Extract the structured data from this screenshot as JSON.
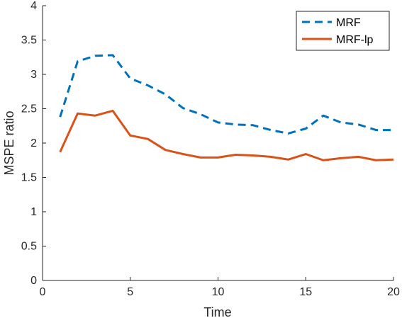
{
  "chart_data": {
    "type": "line",
    "xlabel": "Time",
    "ylabel": "MSPE ratio",
    "xlim": [
      0,
      20
    ],
    "ylim": [
      0,
      4
    ],
    "xticks": [
      "0",
      "5",
      "10",
      "15",
      "20"
    ],
    "yticks": [
      "0",
      "0.5",
      "1",
      "1.5",
      "2",
      "2.5",
      "3",
      "3.5",
      "4"
    ],
    "grid": false,
    "legend_position": "top-right",
    "x": [
      1,
      2,
      3,
      4,
      5,
      6,
      7,
      8,
      9,
      10,
      11,
      12,
      13,
      14,
      15,
      16,
      17,
      18,
      19,
      20
    ],
    "series": [
      {
        "name": "MRF",
        "color": "#0072BD",
        "style": "dashed",
        "values": [
          2.38,
          3.19,
          3.27,
          3.28,
          2.94,
          2.84,
          2.71,
          2.51,
          2.42,
          2.3,
          2.27,
          2.26,
          2.19,
          2.14,
          2.21,
          2.4,
          2.3,
          2.27,
          2.19,
          2.19
        ]
      },
      {
        "name": "MRF-lp",
        "color": "#D95319",
        "style": "solid",
        "values": [
          1.87,
          2.43,
          2.4,
          2.47,
          2.11,
          2.06,
          1.9,
          1.84,
          1.79,
          1.79,
          1.83,
          1.82,
          1.8,
          1.76,
          1.84,
          1.75,
          1.78,
          1.8,
          1.75,
          1.76
        ]
      }
    ]
  }
}
